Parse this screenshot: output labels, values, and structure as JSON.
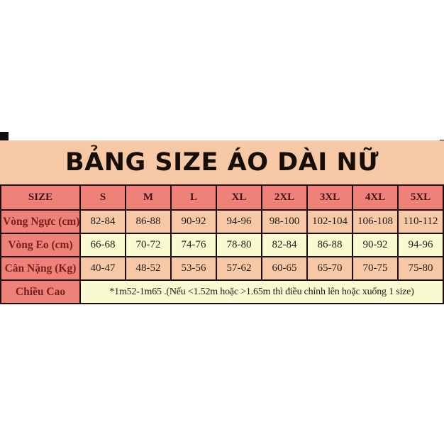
{
  "colors": {
    "page_bg": "#ffffff",
    "banner_bg": "#f6c8a6",
    "header_bg": "#ee8279",
    "cell_peach": "#f6c8a6",
    "cell_yellow": "#fafad2",
    "border": "#1e0e0e",
    "title_text": "#170e08",
    "header_text": "#43141a",
    "label_text": "#7a1e1e",
    "value_text": "#211c15"
  },
  "chart_data": {
    "type": "table",
    "title": "BẢNG SIZE ÁO DÀI NỮ",
    "columns": [
      "SIZE",
      "S",
      "M",
      "L",
      "XL",
      "2XL",
      "3XL",
      "4XL",
      "5XL"
    ],
    "rows": [
      {
        "label": "Vòng Ngực (cm)",
        "values": [
          "82-84",
          "86-88",
          "90-92",
          "94-96",
          "98-100",
          "102-104",
          "106-108",
          "110-112"
        ]
      },
      {
        "label": "Vòng Eo (cm)",
        "values": [
          "66-68",
          "70-72",
          "74-76",
          "78-80",
          "82-84",
          "86-88",
          "90-92",
          "94-96"
        ]
      },
      {
        "label": "Cân Nặng (Kg)",
        "values": [
          "40-47",
          "48-52",
          "53-56",
          "57-62",
          "60-65",
          "65-70",
          "70-75",
          "75-80"
        ]
      },
      {
        "label": "Chiều Cao",
        "values": [
          "*1m52-1m65 .(Nếu <1.52m hoặc >1.65m thì điều chỉnh lên hoặc xuống 1 size)"
        ],
        "colspan": 8
      }
    ]
  }
}
